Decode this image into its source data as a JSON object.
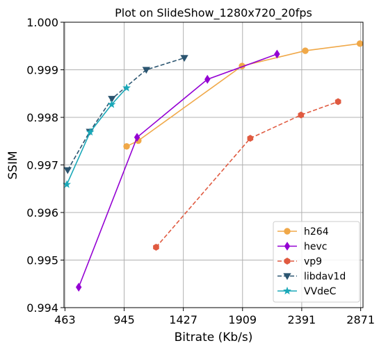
{
  "chart_data": {
    "type": "line",
    "title": "Plot on SlideShow_1280x720_20fps",
    "xlabel": "Bitrate (Kb/s)",
    "ylabel": "SSIM",
    "xlim": [
      455,
      2890
    ],
    "ylim": [
      0.994,
      1.0
    ],
    "xticks": [
      463,
      945,
      1427,
      1909,
      2391,
      2871
    ],
    "xtick_labels": [
      "463",
      "945",
      "1427",
      "1909",
      "2391",
      "2871"
    ],
    "yticks": [
      0.994,
      0.995,
      0.996,
      0.997,
      0.998,
      0.999,
      1.0
    ],
    "ytick_labels": [
      "0.994",
      "0.995",
      "0.996",
      "0.997",
      "0.998",
      "0.999",
      "1.000"
    ],
    "grid": true,
    "legend_position": "bottom-right",
    "series": [
      {
        "name": "h264",
        "color": "#f0a848",
        "linestyle": "solid",
        "marker": "circle",
        "x": [
          965,
          1060,
          1905,
          2420,
          2865
        ],
        "y": [
          0.99739,
          0.99751,
          0.99908,
          0.9994,
          0.99955
        ]
      },
      {
        "name": "hevc",
        "color": "#9400d3",
        "linestyle": "solid",
        "marker": "diamond",
        "x": [
          575,
          1050,
          1623,
          2190
        ],
        "y": [
          0.99443,
          0.99758,
          0.9988,
          0.99933
        ]
      },
      {
        "name": "vp9",
        "color": "#e05a40",
        "linestyle": "dashed",
        "marker": "hexagon",
        "x": [
          1205,
          1972,
          2385,
          2687
        ],
        "y": [
          0.99527,
          0.99756,
          0.99805,
          0.99833
        ]
      },
      {
        "name": "libdav1d",
        "color": "#2b5570",
        "linestyle": "dashed",
        "marker": "triangle-down",
        "x": [
          485,
          665,
          845,
          1125,
          1435
        ],
        "y": [
          0.99689,
          0.9977,
          0.99839,
          0.999,
          0.99925
        ]
      },
      {
        "name": "VVdeC",
        "color": "#1aa8b8",
        "linestyle": "solid",
        "marker": "star",
        "x": [
          478,
          668,
          843,
          965
        ],
        "y": [
          0.99659,
          0.99769,
          0.99827,
          0.99862
        ]
      }
    ]
  }
}
